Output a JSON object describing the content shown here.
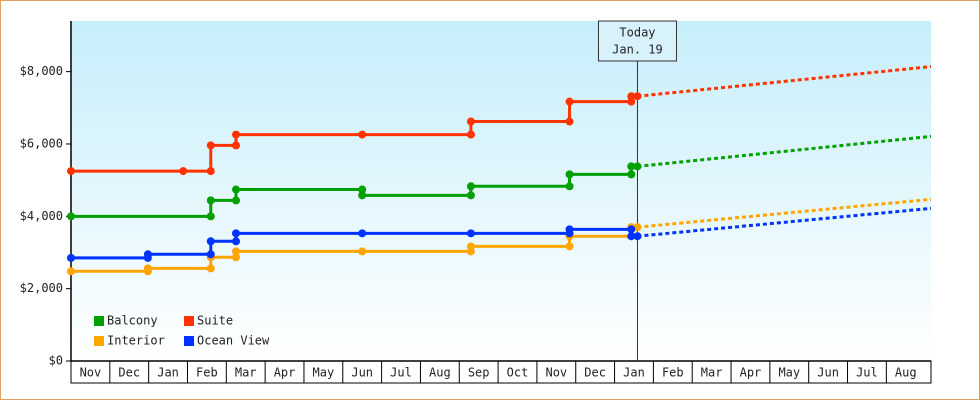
{
  "chart_data": {
    "type": "step-line",
    "categories": [
      "Nov",
      "Dec",
      "Jan",
      "Feb",
      "Mar",
      "Apr",
      "May",
      "Jun",
      "Jul",
      "Aug",
      "Sep",
      "Oct",
      "Nov",
      "Dec",
      "Jan",
      "Feb",
      "Mar",
      "Apr",
      "May",
      "Jun",
      "Jul",
      "Aug"
    ],
    "xlim": [
      0,
      22.15
    ],
    "ylim": [
      0,
      9400
    ],
    "yticks": [
      {
        "value": 0,
        "label": "$0"
      },
      {
        "value": 2000,
        "label": "$2,000"
      },
      {
        "value": 4000,
        "label": "$4,000"
      },
      {
        "value": 6000,
        "label": "$6,000"
      },
      {
        "value": 8000,
        "label": "$8,000"
      }
    ],
    "legend": "lower-left",
    "today": {
      "x": 14.59,
      "label": "Today",
      "date": "Jan. 19"
    },
    "series": [
      {
        "name": "Balcony",
        "color": "#00a000",
        "x": [
          0,
          3.6,
          3.6,
          4.25,
          4.25,
          7.5,
          7.5,
          10.3,
          10.3,
          12.84,
          12.84,
          14.43,
          14.43,
          14.59
        ],
        "values": [
          4000,
          4000,
          4440,
          4440,
          4740,
          4740,
          4580,
          4580,
          4830,
          4830,
          5160,
          5160,
          5380,
          5380
        ],
        "forecast_x": [
          14.59,
          22.15
        ],
        "forecast_values": [
          5380,
          6210
        ]
      },
      {
        "name": "Suite",
        "color": "#ff3300",
        "x": [
          0,
          2.89,
          3.6,
          3.6,
          4.25,
          4.25,
          7.5,
          10.3,
          10.3,
          12.84,
          12.84,
          14.43,
          14.43,
          14.59
        ],
        "values": [
          5250,
          5250,
          5250,
          5960,
          5960,
          6260,
          6260,
          6260,
          6620,
          6620,
          7170,
          7170,
          7320,
          7320
        ],
        "forecast_x": [
          14.59,
          22.15
        ],
        "forecast_values": [
          7320,
          8140
        ]
      },
      {
        "name": "Interior",
        "color": "#ffa500",
        "x": [
          0,
          1.98,
          1.98,
          3.6,
          3.6,
          4.25,
          4.25,
          7.5,
          10.3,
          10.3,
          12.84,
          12.84,
          14.43,
          14.43,
          14.59
        ],
        "values": [
          2480,
          2480,
          2560,
          2560,
          2870,
          2870,
          3030,
          3030,
          3030,
          3170,
          3170,
          3450,
          3450,
          3700,
          3700
        ],
        "forecast_x": [
          14.59,
          22.15
        ],
        "forecast_values": [
          3700,
          4470
        ]
      },
      {
        "name": "Ocean View",
        "color": "#0033ff",
        "x": [
          0,
          1.98,
          1.98,
          3.6,
          3.6,
          4.25,
          4.25,
          7.5,
          10.3,
          12.84,
          12.84,
          14.43,
          14.43,
          14.59
        ],
        "values": [
          2850,
          2850,
          2950,
          2950,
          3310,
          3310,
          3530,
          3530,
          3530,
          3530,
          3640,
          3640,
          3450,
          3450
        ],
        "forecast_x": [
          14.59,
          22.15
        ],
        "forecast_values": [
          3450,
          4220
        ]
      }
    ]
  }
}
